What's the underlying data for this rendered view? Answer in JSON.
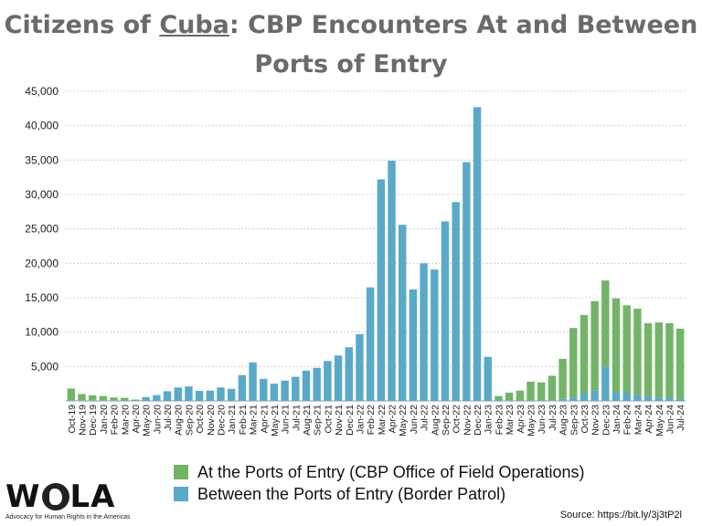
{
  "title": {
    "prefix": "Citizens of ",
    "country": "Cuba",
    "suffix": ": CBP Encounters At and Between Ports of Entry"
  },
  "legend": {
    "ofo_label": "At the Ports of Entry (CBP Office of Field Operations)",
    "bp_label": "Between the Ports of Entry (Border Patrol)"
  },
  "colors": {
    "ofo": "#72b468",
    "bp": "#5aa9c9",
    "grid": "#c8c8c8",
    "title": "#6a6a6a"
  },
  "logo": {
    "word_left": "W",
    "word_right": "LA",
    "tagline": "Advocacy for Human Rights in the Americas"
  },
  "source": "Source: https://bit.ly/3j3tP2l",
  "chart_data": {
    "type": "bar",
    "stacked": true,
    "title": "Citizens of Cuba: CBP Encounters At and Between Ports of Entry",
    "ylim": [
      0,
      45000
    ],
    "yticks": [
      "45,000",
      "40,000",
      "35,000",
      "30,000",
      "25,000",
      "20,000",
      "15,000",
      "10,000",
      "5,000"
    ],
    "grid": true,
    "legend_position": "bottom",
    "categories": [
      "Oct-19",
      "Nov-19",
      "Dec-19",
      "Jan-20",
      "Feb-20",
      "Mar-20",
      "Apr-20",
      "May-20",
      "Jun-20",
      "Jul-20",
      "Aug-20",
      "Sep-20",
      "Oct-20",
      "Nov-20",
      "Dec-20",
      "Jan-21",
      "Feb-21",
      "Mar-21",
      "Apr-21",
      "May-21",
      "Jun-21",
      "Jul-21",
      "Aug-21",
      "Sep-21",
      "Oct-21",
      "Nov-21",
      "Dec-21",
      "Jan-22",
      "Feb-22",
      "Mar-22",
      "Apr-22",
      "May-22",
      "Jun-22",
      "Jul-22",
      "Aug-22",
      "Sep-22",
      "Oct-22",
      "Nov-22",
      "Dec-22",
      "Jan-23",
      "Feb-23",
      "Mar-23",
      "Apr-23",
      "May-23",
      "Jun-23",
      "Jul-23",
      "Aug-23",
      "Sep-23",
      "Oct-23",
      "Nov-23",
      "Dec-23",
      "Jan-24",
      "Feb-24",
      "Mar-24",
      "Apr-24",
      "May-24",
      "Jun-24",
      "Jul-24"
    ],
    "series": [
      {
        "name": "Between the Ports of Entry (Border Patrol)",
        "values": [
          100,
          100,
          100,
          100,
          100,
          50,
          50,
          550,
          850,
          1400,
          1950,
          2100,
          1450,
          1500,
          1950,
          1750,
          3750,
          5600,
          3200,
          2500,
          2950,
          3500,
          4400,
          4800,
          5800,
          6600,
          7800,
          9700,
          16500,
          32200,
          34900,
          25600,
          16200,
          20000,
          19100,
          26100,
          28900,
          34700,
          42700,
          6400,
          200,
          100,
          50,
          50,
          50,
          100,
          300,
          500,
          1000,
          1500,
          5000,
          1300,
          1200,
          900,
          700,
          500,
          400,
          300
        ]
      },
      {
        "name": "At the Ports of Entry (CBP Office of Field Operations)",
        "values": [
          1700,
          900,
          700,
          600,
          400,
          400,
          150,
          0,
          0,
          0,
          0,
          0,
          0,
          0,
          0,
          0,
          0,
          0,
          0,
          0,
          0,
          0,
          0,
          0,
          0,
          0,
          0,
          0,
          0,
          0,
          0,
          0,
          0,
          0,
          0,
          0,
          0,
          0,
          0,
          0,
          500,
          1100,
          1450,
          2750,
          2650,
          3550,
          5800,
          10100,
          11500,
          13000,
          12500,
          13600,
          12700,
          12500,
          10600,
          10900,
          10900,
          10200
        ]
      }
    ]
  }
}
